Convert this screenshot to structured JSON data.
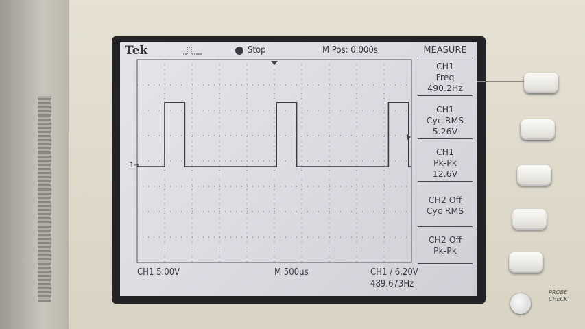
{
  "header": {
    "brand": "Tek",
    "trigger_icon": "pulse-trigger-icon",
    "run_state": "Stop",
    "m_pos": "M Pos: 0.000s"
  },
  "menu": {
    "title": "MEASURE",
    "items": [
      {
        "line1": "CH1",
        "line2": "Freq",
        "value": "490.2Hz"
      },
      {
        "line1": "CH1",
        "line2": "Cyc RMS",
        "value": "5.26V"
      },
      {
        "line1": "CH1",
        "line2": "Pk-Pk",
        "value": "12.6V"
      },
      {
        "line1": "CH2 Off",
        "line2": "Cyc RMS",
        "value": ""
      },
      {
        "line1": "CH2 Off",
        "line2": "Pk-Pk",
        "value": ""
      }
    ]
  },
  "footer": {
    "ch1_scale": "CH1  5.00V",
    "timebase": "M 500µs",
    "trigger": "CH1 ∕ 6.20V",
    "trigger_freq": "489.673Hz"
  },
  "channel_marker": "1→",
  "probe_check": {
    "line1": "PROBE",
    "line2": "CHECK"
  },
  "waveform": {
    "frequency_hz": 490.2,
    "pk_pk_v": 12.6,
    "volts_per_div": 5.0,
    "time_per_div_us": 500
  },
  "colors": {
    "lcd_bg": "#dcdbe2",
    "trace": "#3b3b44",
    "bezel": "#232326"
  }
}
